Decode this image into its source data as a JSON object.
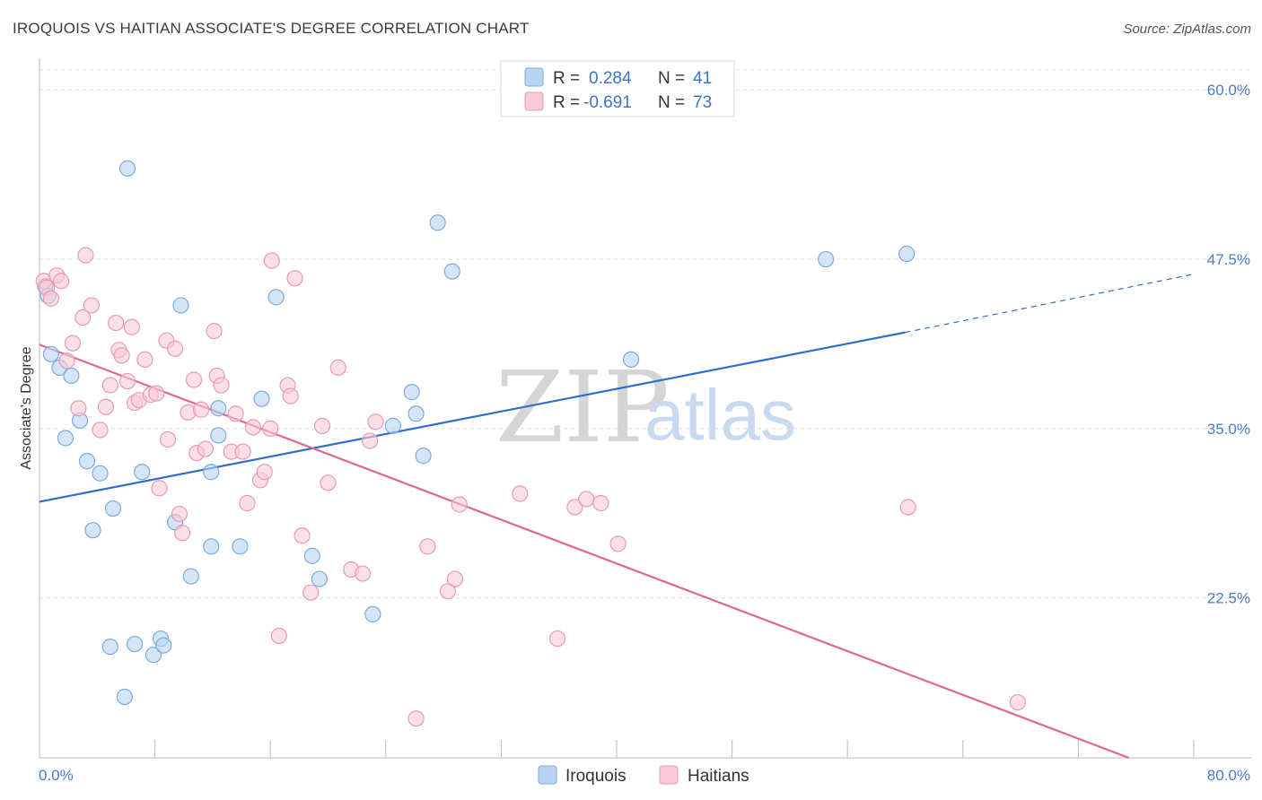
{
  "title": "IROQUOIS VS HAITIAN ASSOCIATE'S DEGREE CORRELATION CHART",
  "source": "Source: ZipAtlas.com",
  "watermark": {
    "zip": "ZIP",
    "atlas": "atlas"
  },
  "legend": {
    "r_label": "R =",
    "n_label": "N =",
    "entries": [
      {
        "r": "0.284",
        "n": "41"
      },
      {
        "r": "-0.691",
        "n": "73"
      }
    ]
  },
  "colors": {
    "iroquois_fill": "#b9d3f3",
    "iroquois_stroke": "#7ea9dd",
    "iroquois_line": "#2e6fcc",
    "haitians_fill": "#f8c9d7",
    "haitians_stroke": "#e99ab3",
    "haitians_line": "#e0658f"
  },
  "chart_data": {
    "type": "scatter",
    "xlabel": "",
    "ylabel": "Associate's Degree",
    "x_tick_labels": [
      "0.0%",
      "80.0%"
    ],
    "y_tick_labels": [
      "60.0%",
      "47.5%",
      "35.0%",
      "22.5%"
    ],
    "xlim": [
      0,
      80
    ],
    "ylim": [
      10.7,
      62
    ],
    "y_ticks": [
      60,
      47.5,
      35,
      22.5
    ],
    "grid": true,
    "legend_position": "top-center",
    "series": [
      {
        "name": "Iroquois",
        "r": 0.284,
        "n": 41,
        "trend": {
          "x0": 0,
          "y0": 29.6,
          "x1": 60,
          "y1": 42.1,
          "dashed_to": 80,
          "dashed_y": 46.4
        },
        "points": [
          [
            0.4,
            45.5
          ],
          [
            0.6,
            44.8
          ],
          [
            0.8,
            40.5
          ],
          [
            1.4,
            39.5
          ],
          [
            1.8,
            34.3
          ],
          [
            2.2,
            38.9
          ],
          [
            2.8,
            35.6
          ],
          [
            3.3,
            32.6
          ],
          [
            3.7,
            27.5
          ],
          [
            4.2,
            31.7
          ],
          [
            4.9,
            18.9
          ],
          [
            5.1,
            29.1
          ],
          [
            5.9,
            15.2
          ],
          [
            6.1,
            54.2
          ],
          [
            6.6,
            19.1
          ],
          [
            7.1,
            31.8
          ],
          [
            7.9,
            18.3
          ],
          [
            8.4,
            19.5
          ],
          [
            8.6,
            19.0
          ],
          [
            9.4,
            28.1
          ],
          [
            9.8,
            44.1
          ],
          [
            10.5,
            24.1
          ],
          [
            11.9,
            26.3
          ],
          [
            11.9,
            31.8
          ],
          [
            12.4,
            34.5
          ],
          [
            12.4,
            36.5
          ],
          [
            13.9,
            26.3
          ],
          [
            15.4,
            37.2
          ],
          [
            16.4,
            44.7
          ],
          [
            18.9,
            25.6
          ],
          [
            19.4,
            23.9
          ],
          [
            23.1,
            21.3
          ],
          [
            24.5,
            35.2
          ],
          [
            25.8,
            37.7
          ],
          [
            26.1,
            36.1
          ],
          [
            26.6,
            33.0
          ],
          [
            27.6,
            50.2
          ],
          [
            28.6,
            46.6
          ],
          [
            41.0,
            40.1
          ],
          [
            54.5,
            47.5
          ],
          [
            60.1,
            47.9
          ]
        ]
      },
      {
        "name": "Haitians",
        "r": -0.691,
        "n": 73,
        "trend": {
          "x0": 0,
          "y0": 41.2,
          "x1": 75.5,
          "y1": 10.7
        },
        "points": [
          [
            0.3,
            45.9
          ],
          [
            0.5,
            45.4
          ],
          [
            0.8,
            44.6
          ],
          [
            1.2,
            46.3
          ],
          [
            1.5,
            45.9
          ],
          [
            1.9,
            40.0
          ],
          [
            2.3,
            41.3
          ],
          [
            2.7,
            36.5
          ],
          [
            3.0,
            43.2
          ],
          [
            3.2,
            47.8
          ],
          [
            3.6,
            44.1
          ],
          [
            4.2,
            34.9
          ],
          [
            4.6,
            36.6
          ],
          [
            4.9,
            38.2
          ],
          [
            5.3,
            42.8
          ],
          [
            5.5,
            40.8
          ],
          [
            5.7,
            40.4
          ],
          [
            6.1,
            38.5
          ],
          [
            6.4,
            42.5
          ],
          [
            6.6,
            36.9
          ],
          [
            6.9,
            37.1
          ],
          [
            7.3,
            40.1
          ],
          [
            7.7,
            37.5
          ],
          [
            8.1,
            37.6
          ],
          [
            8.3,
            30.6
          ],
          [
            8.8,
            41.5
          ],
          [
            8.9,
            34.2
          ],
          [
            9.4,
            40.9
          ],
          [
            9.7,
            28.7
          ],
          [
            9.9,
            27.3
          ],
          [
            10.3,
            36.2
          ],
          [
            10.7,
            38.6
          ],
          [
            10.9,
            33.2
          ],
          [
            11.2,
            36.4
          ],
          [
            11.5,
            33.5
          ],
          [
            12.1,
            42.2
          ],
          [
            12.3,
            38.9
          ],
          [
            12.6,
            38.2
          ],
          [
            13.3,
            33.3
          ],
          [
            13.6,
            36.1
          ],
          [
            14.1,
            33.3
          ],
          [
            14.4,
            29.5
          ],
          [
            14.8,
            35.1
          ],
          [
            15.3,
            31.2
          ],
          [
            15.6,
            31.8
          ],
          [
            16.0,
            35.0
          ],
          [
            16.1,
            47.4
          ],
          [
            16.6,
            19.7
          ],
          [
            17.2,
            38.2
          ],
          [
            17.4,
            37.4
          ],
          [
            17.7,
            46.1
          ],
          [
            18.2,
            27.1
          ],
          [
            18.8,
            22.9
          ],
          [
            19.6,
            35.2
          ],
          [
            20.0,
            31.0
          ],
          [
            20.7,
            39.5
          ],
          [
            21.6,
            24.6
          ],
          [
            22.4,
            24.3
          ],
          [
            22.9,
            34.1
          ],
          [
            23.3,
            35.5
          ],
          [
            26.1,
            13.6
          ],
          [
            26.9,
            26.3
          ],
          [
            28.3,
            23.0
          ],
          [
            28.8,
            23.9
          ],
          [
            29.1,
            29.4
          ],
          [
            33.3,
            30.2
          ],
          [
            35.9,
            19.5
          ],
          [
            37.1,
            29.2
          ],
          [
            37.9,
            29.8
          ],
          [
            38.9,
            29.5
          ],
          [
            40.1,
            26.5
          ],
          [
            60.2,
            29.2
          ],
          [
            67.8,
            14.8
          ]
        ]
      }
    ]
  },
  "bottom_legend": [
    "Iroquois",
    "Haitians"
  ]
}
